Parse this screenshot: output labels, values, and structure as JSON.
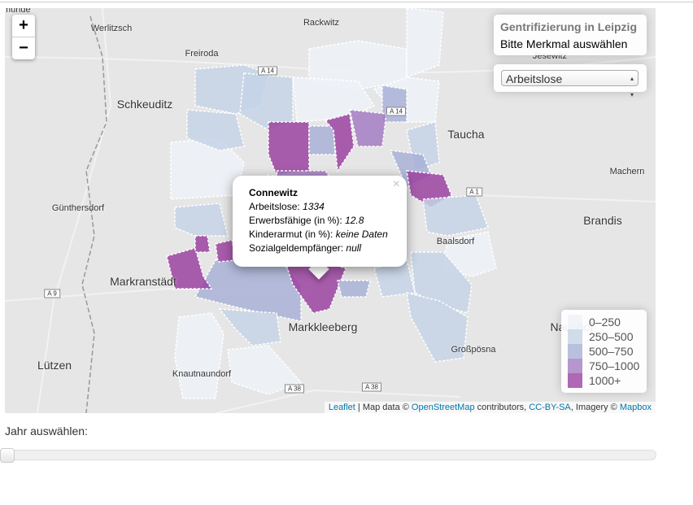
{
  "zoom": {
    "in": "+",
    "out": "−"
  },
  "places": [
    "smunde",
    "Werlitzsch",
    "Rackwitz",
    "Freiroda",
    "Jesewitz",
    "Schkeuditz",
    "Taucha",
    "Machern",
    "Günthersdorf",
    "Brandis",
    "Baalsdorf",
    "Markranstädt",
    "Markkleeberg",
    "Naunhof",
    "Großpösna",
    "Lützen",
    "Knautnaundorf"
  ],
  "roads": [
    "A 14",
    "A 14",
    "A 1",
    "A 9",
    "A 38",
    "A 38"
  ],
  "info": {
    "title": "Gentrifizierung in Leipzig",
    "subtitle": "Bitte Merkmal auswählen",
    "select": "Arbeitslose"
  },
  "popup": {
    "close": "×",
    "title": "Connewitz",
    "rows": [
      {
        "label": "Arbeitslose:",
        "value": 1334
      },
      {
        "label": "Erwerbsfähige (in %):",
        "value": 12.8
      },
      {
        "label": "Kinderarmut (in %):",
        "value": "keine Daten"
      },
      {
        "label": "Sozialgeldempfänger:",
        "value": "null"
      }
    ]
  },
  "legend": [
    {
      "label": "0–250",
      "color": "#edf2f8"
    },
    {
      "label": "250–500",
      "color": "#c5d3e6"
    },
    {
      "label": "500–750",
      "color": "#a8b0d6"
    },
    {
      "label": "750–1000",
      "color": "#a47cc2"
    },
    {
      "label": "1000+",
      "color": "#9b42a0"
    }
  ],
  "attribution": {
    "leaflet": "Leaflet",
    "t1": " | Map data © ",
    "osm": "OpenStreetMap",
    "t2": " contributors, ",
    "cc": "CC-BY-SA",
    "t3": ", Imagery © ",
    "mapbox": "Mapbox"
  },
  "slider": {
    "label": "Jahr auswählen:"
  }
}
